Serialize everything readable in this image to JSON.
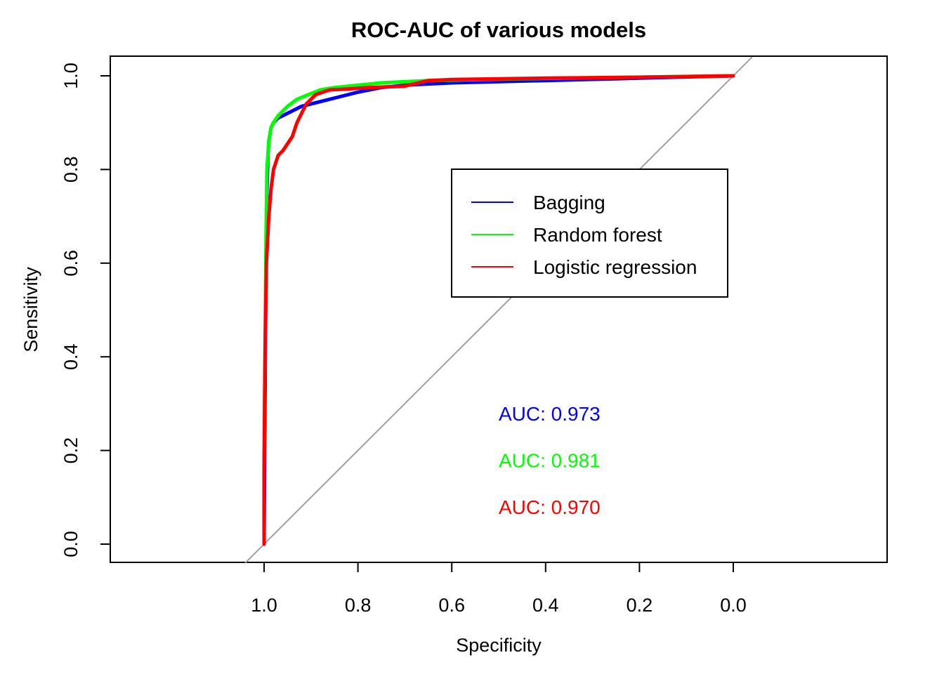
{
  "chart_data": {
    "type": "line",
    "title": "ROC-AUC of various models",
    "xlabel": "Specificity",
    "ylabel": "Sensitivity",
    "x_reversed": true,
    "xlim": [
      1.0,
      0.0
    ],
    "ylim": [
      0.0,
      1.0
    ],
    "x_ticks": [
      "1.0",
      "0.8",
      "0.6",
      "0.4",
      "0.2",
      "0.0"
    ],
    "y_ticks": [
      "0.0",
      "0.2",
      "0.4",
      "0.6",
      "0.8",
      "1.0"
    ],
    "grid": false,
    "legend_position": "top-right",
    "reference_line": {
      "color": "#a0a0a0"
    },
    "series": [
      {
        "name": "Bagging",
        "color": "#0000ff",
        "auc_label": "AUC: 0.973",
        "x": [
          1.0,
          0.998,
          0.996,
          0.994,
          0.992,
          0.99,
          0.985,
          0.98,
          0.97,
          0.95,
          0.92,
          0.88,
          0.84,
          0.8,
          0.75,
          0.7,
          0.6,
          0.4,
          0.2,
          0.0
        ],
        "y": [
          0.0,
          0.3,
          0.6,
          0.75,
          0.82,
          0.86,
          0.89,
          0.9,
          0.91,
          0.92,
          0.935,
          0.945,
          0.955,
          0.965,
          0.975,
          0.98,
          0.985,
          0.99,
          0.995,
          1.0
        ]
      },
      {
        "name": "Random forest",
        "color": "#00ff00",
        "auc_label": "AUC: 0.981",
        "x": [
          1.0,
          1.0,
          0.998,
          0.996,
          0.994,
          0.99,
          0.985,
          0.98,
          0.97,
          0.95,
          0.93,
          0.9,
          0.88,
          0.85,
          0.8,
          0.75,
          0.65,
          0.5,
          0.3,
          0.0
        ],
        "y": [
          0.0,
          0.16,
          0.4,
          0.65,
          0.8,
          0.86,
          0.89,
          0.9,
          0.915,
          0.935,
          0.95,
          0.962,
          0.97,
          0.975,
          0.98,
          0.985,
          0.99,
          0.993,
          0.996,
          1.0
        ]
      },
      {
        "name": "Logistic regression",
        "color": "#ff0000",
        "auc_label": "AUC: 0.970",
        "x": [
          1.0,
          1.0,
          0.998,
          0.995,
          0.99,
          0.985,
          0.98,
          0.97,
          0.96,
          0.94,
          0.93,
          0.91,
          0.89,
          0.86,
          0.82,
          0.78,
          0.7,
          0.65,
          0.6,
          0.4,
          0.2,
          0.0
        ],
        "y": [
          0.0,
          0.16,
          0.4,
          0.6,
          0.7,
          0.76,
          0.8,
          0.83,
          0.84,
          0.87,
          0.9,
          0.94,
          0.96,
          0.97,
          0.972,
          0.975,
          0.978,
          0.99,
          0.992,
          0.995,
          0.997,
          1.0
        ]
      }
    ]
  }
}
